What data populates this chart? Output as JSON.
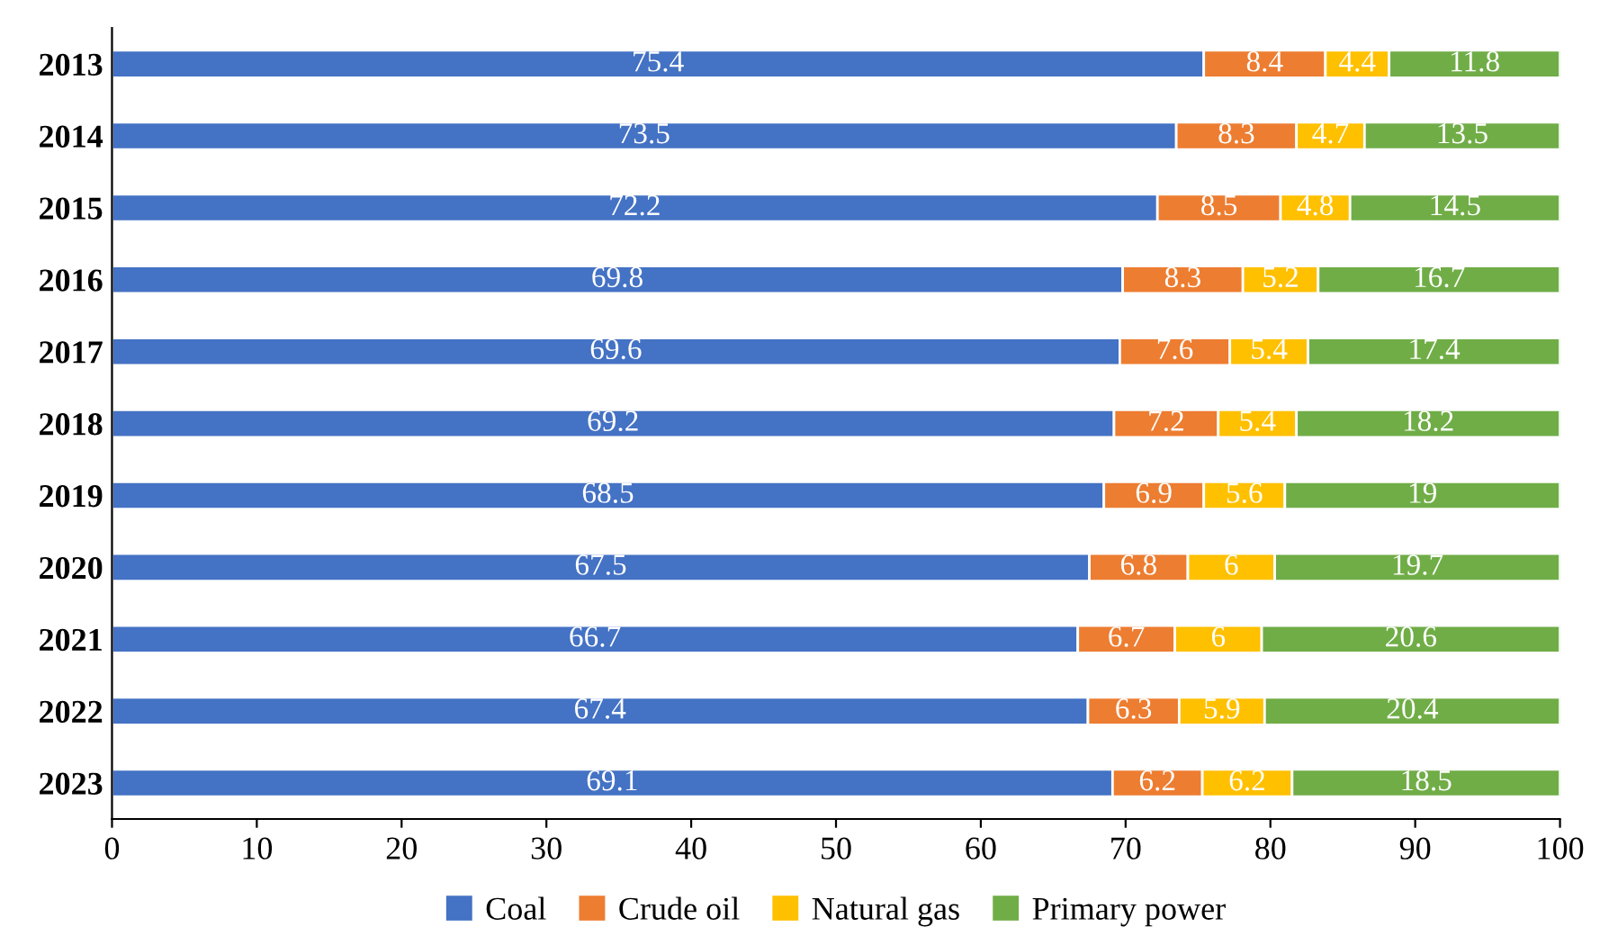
{
  "chart_data": {
    "type": "bar",
    "orientation": "horizontal",
    "stacked": true,
    "data_labels": true,
    "legend": "bottom",
    "grid": false,
    "categories": [
      "2013",
      "2014",
      "2015",
      "2016",
      "2017",
      "2018",
      "2019",
      "2020",
      "2021",
      "2022",
      "2023"
    ],
    "series": [
      {
        "name": "Coal",
        "color": "#4472c4",
        "values": [
          75.4,
          73.5,
          72.2,
          69.8,
          69.6,
          69.2,
          68.5,
          67.5,
          66.7,
          67.4,
          69.1
        ]
      },
      {
        "name": "Crude oil",
        "color": "#ed7d31",
        "values": [
          8.4,
          8.3,
          8.5,
          8.3,
          7.6,
          7.2,
          6.9,
          6.8,
          6.7,
          6.3,
          6.2
        ]
      },
      {
        "name": "Natural gas",
        "color": "#ffc000",
        "values": [
          4.4,
          4.7,
          4.8,
          5.2,
          5.4,
          5.4,
          5.6,
          6,
          6,
          5.9,
          6.2
        ]
      },
      {
        "name": "Primary power",
        "color": "#70ad47",
        "values": [
          11.8,
          13.5,
          14.5,
          16.7,
          17.4,
          18.2,
          19,
          19.7,
          20.6,
          20.4,
          18.5
        ]
      }
    ],
    "xlim": [
      0,
      100
    ],
    "xticks": [
      0,
      10,
      20,
      30,
      40,
      50,
      60,
      70,
      80,
      90,
      100
    ]
  }
}
